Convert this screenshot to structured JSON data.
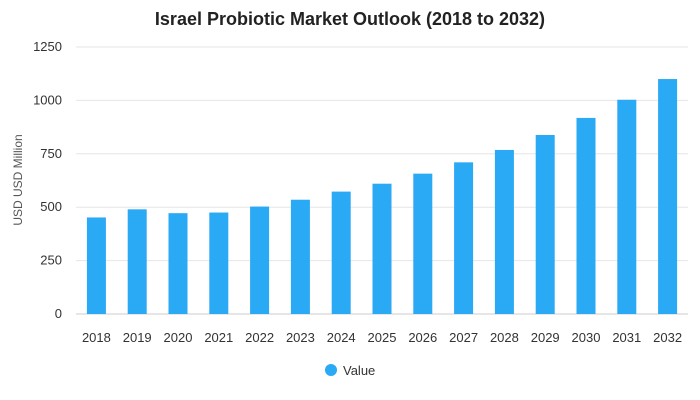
{
  "chart_data": {
    "type": "bar",
    "title": "Israel Probiotic Market Outlook (2018 to 2032)",
    "ylabel": "USD USD Million",
    "xlabel": "",
    "categories": [
      "2018",
      "2019",
      "2020",
      "2021",
      "2022",
      "2023",
      "2024",
      "2025",
      "2026",
      "2027",
      "2028",
      "2029",
      "2030",
      "2031",
      "2032"
    ],
    "series": [
      {
        "name": "Value",
        "color": "#2aa9f5",
        "values": [
          452,
          490,
          472,
          475,
          503,
          535,
          573,
          610,
          657,
          710,
          768,
          838,
          918,
          1003,
          1100
        ]
      }
    ],
    "ylim": [
      0,
      1250
    ],
    "yticks": [
      0,
      250,
      500,
      750,
      1000,
      1250
    ],
    "grid": true,
    "legend_position": "bottom-center"
  }
}
